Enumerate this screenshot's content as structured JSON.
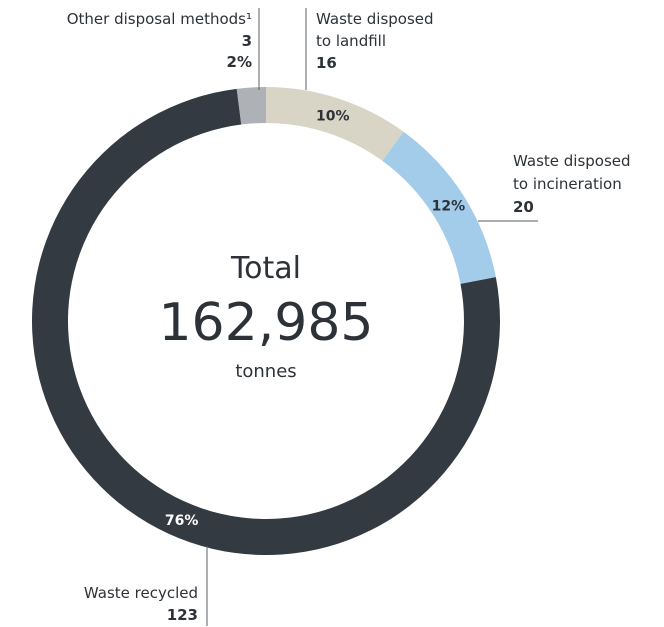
{
  "chart_data": {
    "type": "pie",
    "style": "donut",
    "center": {
      "line1": "Total",
      "value": "162,985",
      "unit": "tonnes"
    },
    "slices": [
      {
        "label_lines": [
          "Other disposal methods¹"
        ],
        "value": 3,
        "value_text": "3",
        "percent": 2,
        "percent_text": "2%",
        "color": "#aeb2b6"
      },
      {
        "label_lines": [
          "Waste disposed",
          "to landfill"
        ],
        "value": 16,
        "value_text": "16",
        "percent": 10,
        "percent_text": "10%",
        "color": "#d9d5c6"
      },
      {
        "label_lines": [
          "Waste disposed",
          "to incineration"
        ],
        "value": 20,
        "value_text": "20",
        "percent": 12,
        "percent_text": "12%",
        "color": "#a3cceb"
      },
      {
        "label_lines": [
          "Waste recycled"
        ],
        "value": 123,
        "value_text": "123",
        "percent": 76,
        "percent_text": "76%",
        "color": "#343a41"
      }
    ]
  }
}
